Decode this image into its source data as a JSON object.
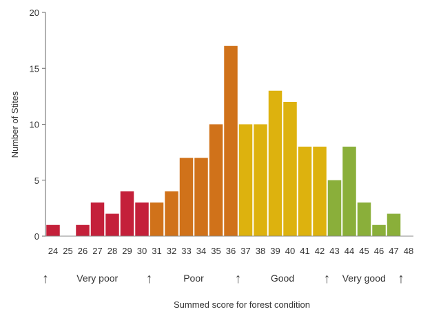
{
  "chart_data": {
    "type": "bar",
    "title": "",
    "xlabel": "Summed score for forest condition",
    "ylabel": "Number of Stites",
    "ylim": [
      0,
      20
    ],
    "yticks": [
      0,
      5,
      10,
      15,
      20
    ],
    "grid": false,
    "categories": [
      "24",
      "25",
      "26",
      "27",
      "28",
      "29",
      "30",
      "31",
      "32",
      "33",
      "34",
      "35",
      "36",
      "37",
      "38",
      "39",
      "40",
      "41",
      "42",
      "43",
      "44",
      "45",
      "46",
      "47"
    ],
    "end_tick_label": "48",
    "values": [
      1,
      0,
      1,
      3,
      2,
      4,
      3,
      3,
      4,
      7,
      7,
      10,
      17,
      10,
      10,
      13,
      12,
      8,
      8,
      5,
      8,
      3,
      1,
      2
    ],
    "classes": [
      {
        "name": "Very poor",
        "from": 24,
        "to": 30,
        "color": "#c4203a"
      },
      {
        "name": "Poor",
        "from": 31,
        "to": 36,
        "color": "#d0721a"
      },
      {
        "name": "Good",
        "from": 37,
        "to": 42,
        "color": "#ddb20e"
      },
      {
        "name": "Very good",
        "from": 43,
        "to": 47,
        "color": "#8aaf3a"
      }
    ],
    "boundary_markers": [
      "24",
      "31",
      "37",
      "43",
      "48"
    ],
    "arrow_glyph": "↑"
  }
}
